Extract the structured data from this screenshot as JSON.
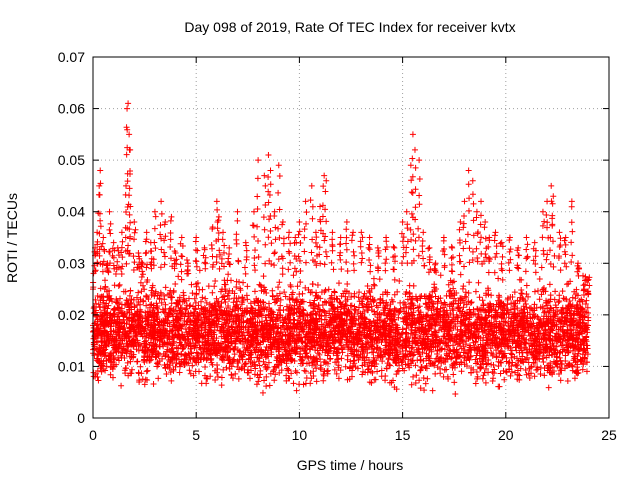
{
  "chart_data": {
    "type": "scatter",
    "title": "Day 098 of 2019, Rate Of TEC Index for receiver kvtx",
    "xlabel": "GPS time / hours",
    "ylabel": "ROTI / TECUs",
    "xlim": [
      0,
      25
    ],
    "ylim": [
      0,
      0.07
    ],
    "xticks": [
      0,
      5,
      10,
      15,
      20,
      25
    ],
    "xtick_labels": [
      "0",
      "5",
      "10",
      "15",
      "20",
      "25"
    ],
    "yticks": [
      0,
      0.01,
      0.02,
      0.03,
      0.04,
      0.05,
      0.06,
      0.07
    ],
    "ytick_labels": [
      "0",
      "0.01",
      "0.02",
      "0.03",
      "0.04",
      "0.05",
      "0.06",
      "0.07"
    ],
    "grid": true,
    "marker": "+",
    "color": "#ff0000",
    "series": [
      {
        "name": "ROTI",
        "x": [
          0.0,
          0.1,
          0.2,
          0.3,
          0.35,
          0.5,
          0.7,
          0.8,
          1.0,
          1.2,
          1.4,
          1.6,
          1.65,
          1.7,
          1.75,
          1.8,
          2.0,
          2.2,
          2.4,
          2.6,
          2.8,
          3.0,
          3.3,
          3.5,
          3.8,
          4.0,
          4.3,
          4.6,
          5.0,
          5.4,
          5.8,
          6.0,
          6.1,
          6.3,
          6.6,
          7.0,
          7.4,
          7.8,
          8.0,
          8.3,
          8.5,
          8.6,
          8.8,
          9.0,
          9.2,
          9.5,
          9.8,
          10.0,
          10.3,
          10.6,
          10.8,
          11.0,
          11.2,
          11.3,
          11.6,
          12.0,
          12.3,
          12.6,
          13.0,
          13.4,
          13.8,
          14.2,
          14.6,
          15.0,
          15.2,
          15.4,
          15.5,
          15.6,
          15.8,
          16.0,
          16.3,
          16.6,
          17.0,
          17.4,
          17.8,
          18.0,
          18.2,
          18.4,
          18.6,
          18.8,
          19.0,
          19.2,
          19.5,
          19.8,
          20.2,
          20.6,
          21.0,
          21.4,
          21.8,
          22.0,
          22.2,
          22.3,
          22.6,
          22.9,
          23.2,
          23.5,
          23.8,
          24.0
        ],
        "y": [
          0.025,
          0.033,
          0.036,
          0.045,
          0.048,
          0.035,
          0.03,
          0.04,
          0.034,
          0.033,
          0.036,
          0.045,
          0.06,
          0.061,
          0.055,
          0.052,
          0.038,
          0.032,
          0.03,
          0.036,
          0.034,
          0.04,
          0.042,
          0.038,
          0.039,
          0.032,
          0.035,
          0.03,
          0.035,
          0.033,
          0.037,
          0.042,
          0.039,
          0.036,
          0.033,
          0.04,
          0.034,
          0.04,
          0.05,
          0.047,
          0.051,
          0.048,
          0.04,
          0.049,
          0.038,
          0.036,
          0.035,
          0.038,
          0.042,
          0.045,
          0.036,
          0.041,
          0.047,
          0.046,
          0.036,
          0.035,
          0.038,
          0.036,
          0.036,
          0.035,
          0.033,
          0.035,
          0.033,
          0.038,
          0.04,
          0.049,
          0.055,
          0.052,
          0.05,
          0.036,
          0.033,
          0.03,
          0.035,
          0.033,
          0.038,
          0.042,
          0.048,
          0.046,
          0.04,
          0.042,
          0.038,
          0.035,
          0.036,
          0.034,
          0.035,
          0.033,
          0.035,
          0.034,
          0.04,
          0.042,
          0.045,
          0.043,
          0.036,
          0.035,
          0.042,
          0.03,
          0.025,
          0.024
        ]
      }
    ],
    "noise_band": {
      "center": 0.013,
      "low": 0.004,
      "high": 0.028,
      "hours_start": 0.0,
      "hours_end": 24.0
    }
  }
}
